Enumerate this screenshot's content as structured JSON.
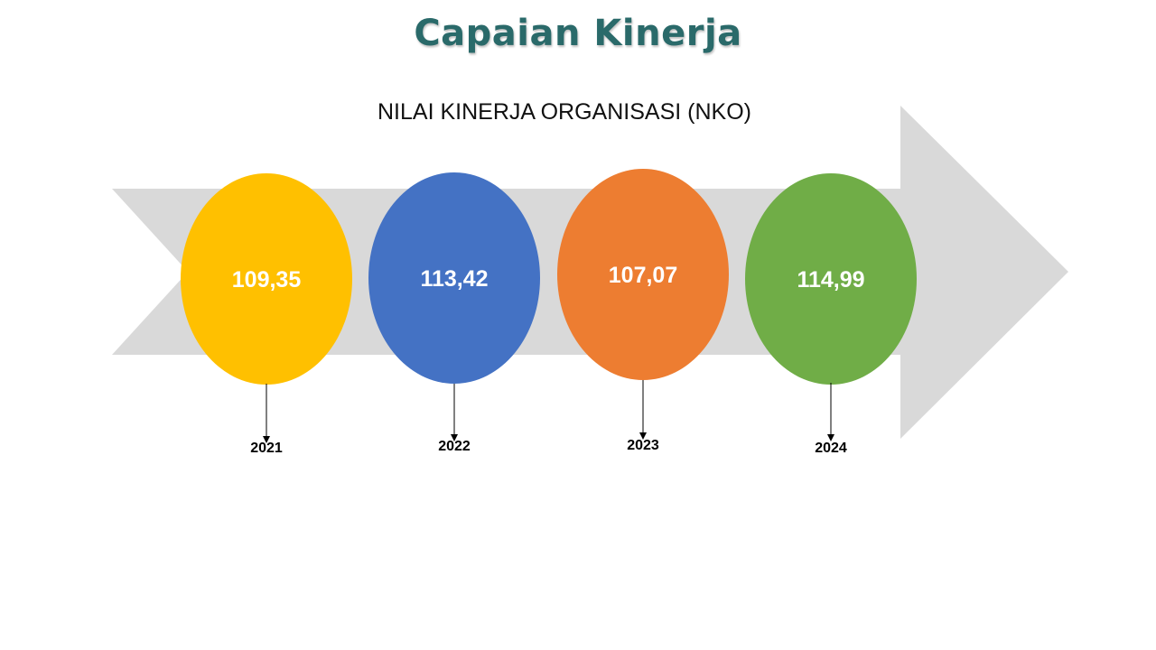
{
  "title": "Capaian Kinerja",
  "subtitle": "NILAI KINERJA ORGANISASI (NKO)",
  "colors": {
    "title": "#2a6a6a",
    "arrow": "#d9d9d9",
    "value_text": "#ffffff"
  },
  "milestones": [
    {
      "year": "2021",
      "value": "109,35",
      "color": "#ffc000"
    },
    {
      "year": "2022",
      "value": "113,42",
      "color": "#4472c4"
    },
    {
      "year": "2023",
      "value": "107,07",
      "color": "#ed7d31"
    },
    {
      "year": "2024",
      "value": "114,99",
      "color": "#70ad47"
    }
  ]
}
